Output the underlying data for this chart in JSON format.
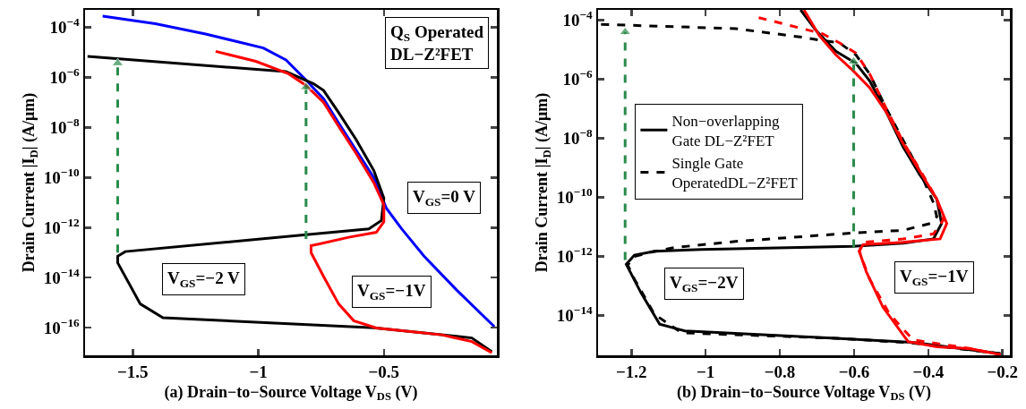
{
  "chart_data": [
    {
      "type": "line",
      "xlabel": "(a) Drain−to−Source Voltage V$_{DS}$ (V)",
      "ylabel": "Drain Current |I$_{D}$| (A/μm)",
      "log": "y",
      "grid": false,
      "legend": false,
      "line_style": "solid",
      "xlim": [
        -1.69,
        -0.05
      ],
      "xticks": [
        -1.5,
        -1,
        -0.5
      ],
      "ylim": [
        7.9e-18,
        0.0005
      ],
      "yticks": [
        {
          "value": 0.0001,
          "label": "10$^{−4}$"
        },
        {
          "value": 1e-06,
          "label": "10$^{−6}$"
        },
        {
          "value": 1e-08,
          "label": "10$^{−8}$"
        },
        {
          "value": 1e-10,
          "label": "10$^{−10}$"
        },
        {
          "value": 1e-12,
          "label": "10$^{−12}$"
        },
        {
          "value": 1e-14,
          "label": "10$^{−14}$"
        },
        {
          "value": 1e-16,
          "label": "10$^{−16}$"
        }
      ],
      "annotations": [
        "Q$_{S}$ Operated\nDL−Z²FET",
        "V$_{GS}$=0 V",
        "V$_{GS}$=−2 V",
        "V$_{GS}$=−1V"
      ],
      "series": [
        {
          "color": "#0000ff",
          "x": [
            -1.62,
            -1.41,
            -1.21,
            -0.98,
            -0.89,
            -0.81,
            -0.74,
            -0.68,
            -0.61,
            -0.54,
            -0.49,
            -0.43,
            -0.34,
            -0.21,
            -0.06
          ],
          "values": [
            0.00028,
            0.00014,
            5.4e-05,
            1.5e-05,
            5e-06,
            7.8e-07,
            1.4e-07,
            1.5e-08,
            1.2e-09,
            1e-10,
            5.9e-12,
            9.1e-13,
            7.2e-14,
            3.2e-15,
            1.1e-16
          ]
        },
        {
          "color": "#000000",
          "x": [
            -1.68,
            -0.89,
            -0.78,
            -0.74,
            -0.68,
            -0.61,
            -0.54,
            -0.5,
            -0.51,
            -0.56,
            -0.81,
            -1.53,
            -1.56,
            -1.56,
            -1.47,
            -1.38,
            -0.54,
            -0.15,
            -0.07
          ],
          "values": [
            6.9e-06,
            1.7e-06,
            5.6e-07,
            3e-07,
            3.9e-08,
            3.2e-09,
            1.9e-10,
            1.5e-11,
            1.9e-12,
            8.9e-13,
            5.2e-13,
            1.1e-13,
            7.2e-14,
            3.9e-14,
            8.9e-16,
            2.5e-16,
            1e-16,
            3.9e-17,
            1.1e-17
          ]
        },
        {
          "color": "#ff0000",
          "x": [
            -1.17,
            -1.01,
            -0.88,
            -0.81,
            -0.74,
            -0.68,
            -0.61,
            -0.54,
            -0.5,
            -0.5,
            -0.53,
            -0.64,
            -0.76,
            -0.79,
            -0.79,
            -0.74,
            -0.68,
            -0.62,
            -0.53,
            -0.27,
            -0.15,
            -0.07
          ],
          "values": [
            1.1e-05,
            4.4e-06,
            1.4e-06,
            4.8e-07,
            1e-07,
            1.1e-08,
            8.9e-10,
            6.2e-11,
            8.1e-12,
            1.7e-12,
            6.5e-13,
            4.1e-13,
            2.2e-13,
            1.9e-13,
            1e-13,
            1.1e-14,
            8.9e-16,
            1.9e-16,
            9.8e-17,
            5.2e-17,
            2.8e-17,
            1e-17
          ]
        },
        {
          "color": "#2a8a4a",
          "line_style": "dashed",
          "marker": "triangle",
          "x": [
            -1.56,
            -1.56
          ],
          "values": [
            1e-13,
            3.7e-06
          ]
        },
        {
          "color": "#2a8a4a",
          "line_style": "dashed",
          "marker": "triangle",
          "x": [
            -0.81,
            -0.81
          ],
          "values": [
            3.5e-13,
            4.1e-07
          ]
        }
      ]
    },
    {
      "type": "line",
      "xlabel": "(b) Drain−to−Source Voltage V$_{DS}$ (V)",
      "ylabel": "Drain Current |I$_{D}$| (A/μm)",
      "log": "y",
      "grid": false,
      "legend": "left",
      "line_style": "solid",
      "xlim": [
        -1.29,
        -0.18
      ],
      "xticks": [
        -1.2,
        -1,
        -0.8,
        -0.6,
        -0.4,
        -0.2
      ],
      "ylim": [
        4.5e-16,
        0.00022
      ],
      "yticks": [
        {
          "value": 0.0001,
          "label": "10$^{−4}$"
        },
        {
          "value": 1e-06,
          "label": "10$^{−6}$"
        },
        {
          "value": 1e-08,
          "label": "10$^{−8}$"
        },
        {
          "value": 1e-10,
          "label": "10$^{−10}$"
        },
        {
          "value": 1e-12,
          "label": "10$^{−12}$"
        },
        {
          "value": 1e-14,
          "label": "10$^{−14}$"
        }
      ],
      "annotations": [
        "V$_{GS}$=−2V",
        "V$_{GS}$=−1V"
      ],
      "series": [
        {
          "name": "Non−overlapping\nGate DL−Z²FET",
          "color": "#000000",
          "x": [
            -0.744,
            -0.703,
            -0.649,
            -0.595,
            -0.558,
            -0.513,
            -0.468,
            -0.423,
            -0.377,
            -0.364,
            -0.386,
            -0.468,
            -0.604,
            -1.011,
            -1.138,
            -1.192,
            -1.214,
            -1.174,
            -1.124,
            -1.056,
            -0.649,
            -0.432,
            -0.205
          ],
          "values": [
            0.00022,
            4.5e-05,
            8.7e-06,
            3.4e-06,
            8.7e-07,
            7.6e-08,
            5.1e-09,
            5.8e-10,
            8.7e-11,
            1.3e-11,
            3.9e-12,
            2.8e-12,
            2.2e-12,
            1.7e-12,
            1.5e-12,
            1.1e-12,
            5.4e-13,
            5.8e-14,
            5.1e-15,
            3e-15,
            1.7e-15,
            1.2e-15,
            5.1e-16
          ]
        },
        {
          "name": "Single Gate\nOperatedDL−Z²FET",
          "color": "#000000",
          "line_style": "dashed",
          "x": [
            -1.282,
            -0.92,
            -0.739,
            -0.685,
            -0.64,
            -0.595,
            -0.558,
            -0.513,
            -0.468,
            -0.423,
            -0.386,
            -0.377,
            -0.395,
            -0.468,
            -0.604,
            -0.92,
            -1.083,
            -1.147,
            -1.192,
            -1.21,
            -1.192,
            -1.138,
            -1.065,
            -0.649,
            -0.45,
            -0.205
          ],
          "values": [
            7.1e-05,
            5.1e-05,
            2.6e-05,
            2e-05,
            1.7e-05,
            6.6e-06,
            1.5e-06,
            1e-07,
            8.7e-09,
            7.6e-10,
            6.6e-11,
            2.2e-11,
            1.3e-11,
            7.6e-12,
            6.2e-12,
            3.2e-12,
            2e-12,
            1.4e-12,
            1e-12,
            5.1e-13,
            1.7e-13,
            1.1e-14,
            2.6e-15,
            1.7e-15,
            1.2e-15,
            5.1e-16
          ]
        },
        {
          "color": "#ff0000",
          "x": [
            -0.735,
            -0.694,
            -0.649,
            -0.604,
            -0.558,
            -0.513,
            -0.468,
            -0.423,
            -0.377,
            -0.35,
            -0.368,
            -0.468,
            -0.576,
            -0.586,
            -0.567,
            -0.522,
            -0.454,
            -0.377,
            -0.287,
            -0.205
          ],
          "values": [
            0.00022,
            3e-05,
            6.6e-06,
            2e-06,
            5.1e-07,
            7.6e-08,
            6.6e-09,
            7.6e-10,
            8.7e-11,
            1.3e-11,
            3.9e-12,
            3e-12,
            2.5e-12,
            1.5e-12,
            3e-13,
            1.9e-14,
            1.3e-15,
            8.7e-16,
            7.6e-16,
            4.7e-16
          ]
        },
        {
          "color": "#ff0000",
          "line_style": "dashed",
          "x": [
            -0.857,
            -0.739,
            -0.685,
            -0.64,
            -0.595,
            -0.558,
            -0.513,
            -0.468,
            -0.423,
            -0.377,
            -0.359,
            -0.386,
            -0.468,
            -0.576,
            -0.586,
            -0.558,
            -0.504,
            -0.441,
            -0.287,
            -0.205
          ],
          "values": [
            0.00012,
            5.1e-05,
            3.4e-05,
            1.7e-05,
            7.6e-06,
            1.5e-06,
            1e-07,
            7.6e-09,
            8.7e-10,
            8.7e-11,
            1.7e-11,
            5.8e-12,
            3.9e-12,
            3e-12,
            1.5e-12,
            1.7e-13,
            1.1e-14,
            1.5e-15,
            7.6e-16,
            4.7e-16
          ]
        },
        {
          "color": "#2a8a4a",
          "line_style": "dashed",
          "marker": "triangle",
          "x": [
            -1.217,
            -1.217
          ],
          "values": [
            7.6e-13,
            3.9e-05
          ]
        },
        {
          "color": "#2a8a4a",
          "line_style": "dashed",
          "marker": "triangle",
          "x": [
            -0.601,
            -0.601
          ],
          "values": [
            2e-12,
            3.9e-06
          ]
        }
      ]
    }
  ]
}
